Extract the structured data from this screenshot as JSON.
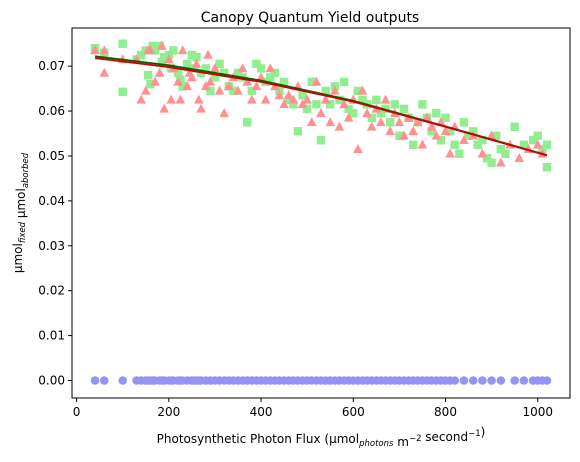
{
  "chart_data": {
    "type": "scatter",
    "title": "Canopy Quantum Yield outputs",
    "xlabel": {
      "parts": [
        {
          "text": "Photosynthetic Photon Flux (µmol",
          "style": "normal"
        },
        {
          "text": "photons",
          "style": "sub-italic"
        },
        {
          "text": " m",
          "style": "normal"
        },
        {
          "text": "−2",
          "style": "sup"
        },
        {
          "text": " second",
          "style": "normal"
        },
        {
          "text": "−1",
          "style": "sup"
        },
        {
          "text": ")",
          "style": "normal"
        }
      ]
    },
    "ylabel": {
      "parts": [
        {
          "text": "µmol",
          "style": "normal"
        },
        {
          "text": "fixed",
          "style": "sub-italic"
        },
        {
          "text": " µmol",
          "style": "normal"
        },
        {
          "text": "aborbed",
          "style": "sub-italic"
        }
      ]
    },
    "xlim": [
      -10,
      1070
    ],
    "ylim": [
      -0.0039,
      0.0785
    ],
    "x_ticks": [
      0,
      200,
      400,
      600,
      800,
      1000
    ],
    "y_ticks": [
      0.0,
      0.01,
      0.02,
      0.03,
      0.04,
      0.05,
      0.06,
      0.07
    ],
    "y_tick_labels": [
      "0.00",
      "0.01",
      "0.02",
      "0.03",
      "0.04",
      "0.05",
      "0.06",
      "0.07"
    ],
    "grid": false,
    "series": [
      {
        "marker": "square",
        "color": "#90ee90",
        "x": [
          40,
          60,
          100,
          100,
          130,
          140,
          150,
          155,
          160,
          165,
          170,
          180,
          185,
          190,
          200,
          205,
          210,
          220,
          225,
          230,
          240,
          250,
          255,
          260,
          270,
          280,
          290,
          300,
          310,
          320,
          330,
          340,
          350,
          360,
          370,
          380,
          390,
          400,
          410,
          420,
          430,
          440,
          450,
          460,
          470,
          480,
          490,
          500,
          510,
          520,
          530,
          540,
          550,
          560,
          570,
          580,
          590,
          600,
          610,
          620,
          630,
          640,
          650,
          660,
          670,
          680,
          690,
          700,
          710,
          720,
          730,
          740,
          750,
          760,
          770,
          780,
          790,
          800,
          810,
          820,
          830,
          840,
          850,
          860,
          870,
          880,
          890,
          900,
          910,
          920,
          930,
          950,
          970,
          990,
          1000,
          1010,
          1020,
          1020
        ],
        "y": [
          0.074,
          0.073,
          0.075,
          0.0643,
          0.0715,
          0.0725,
          0.0735,
          0.068,
          0.066,
          0.0745,
          0.0735,
          0.0745,
          0.071,
          0.072,
          0.0725,
          0.0695,
          0.0735,
          0.0685,
          0.067,
          0.0655,
          0.0705,
          0.0725,
          0.0695,
          0.072,
          0.0685,
          0.0695,
          0.0645,
          0.0675,
          0.0705,
          0.0685,
          0.0655,
          0.0645,
          0.0685,
          0.0675,
          0.0575,
          0.0645,
          0.0705,
          0.0695,
          0.0665,
          0.0675,
          0.0685,
          0.0645,
          0.0665,
          0.0625,
          0.0615,
          0.0555,
          0.0635,
          0.0605,
          0.0665,
          0.0615,
          0.0535,
          0.0645,
          0.0615,
          0.0655,
          0.0625,
          0.0665,
          0.0605,
          0.0595,
          0.0645,
          0.0625,
          0.0615,
          0.0585,
          0.0625,
          0.0595,
          0.0605,
          0.0575,
          0.0615,
          0.0545,
          0.0605,
          0.0585,
          0.0525,
          0.0575,
          0.0615,
          0.0585,
          0.0555,
          0.0595,
          0.0535,
          0.0585,
          0.0555,
          0.0525,
          0.0505,
          0.0575,
          0.0545,
          0.0555,
          0.0525,
          0.0535,
          0.0495,
          0.0485,
          0.0545,
          0.0515,
          0.0505,
          0.0565,
          0.0525,
          0.0535,
          0.0545,
          0.0515,
          0.0525,
          0.0475
        ]
      },
      {
        "marker": "triangle",
        "color": "#ff9191",
        "x": [
          40,
          60,
          60,
          100,
          130,
          140,
          150,
          155,
          160,
          170,
          180,
          185,
          190,
          200,
          205,
          210,
          220,
          225,
          230,
          240,
          245,
          250,
          260,
          265,
          270,
          280,
          285,
          290,
          300,
          310,
          320,
          330,
          340,
          350,
          360,
          370,
          380,
          390,
          400,
          410,
          420,
          430,
          440,
          450,
          460,
          470,
          480,
          490,
          500,
          510,
          520,
          530,
          540,
          550,
          560,
          570,
          580,
          590,
          600,
          610,
          620,
          630,
          640,
          650,
          660,
          670,
          680,
          690,
          700,
          710,
          720,
          730,
          740,
          750,
          760,
          770,
          780,
          790,
          800,
          810,
          820,
          840,
          860,
          880,
          900,
          920,
          940,
          960,
          980,
          1000,
          1010
        ],
        "y": [
          0.0735,
          0.0735,
          0.0685,
          0.0715,
          0.0715,
          0.0625,
          0.0645,
          0.0735,
          0.0735,
          0.0665,
          0.0685,
          0.0745,
          0.0605,
          0.0715,
          0.0625,
          0.0695,
          0.0665,
          0.0625,
          0.0735,
          0.0655,
          0.0685,
          0.0675,
          0.0705,
          0.0625,
          0.0605,
          0.0655,
          0.0725,
          0.0665,
          0.0695,
          0.0645,
          0.0595,
          0.0655,
          0.0675,
          0.0645,
          0.0695,
          0.0665,
          0.0625,
          0.0655,
          0.0675,
          0.0625,
          0.0695,
          0.0655,
          0.0635,
          0.0615,
          0.0635,
          0.0625,
          0.0655,
          0.0615,
          0.0625,
          0.0575,
          0.0665,
          0.0595,
          0.0625,
          0.0575,
          0.0645,
          0.0565,
          0.0615,
          0.0585,
          0.0625,
          0.0515,
          0.0645,
          0.0595,
          0.0565,
          0.0605,
          0.0575,
          0.0625,
          0.0555,
          0.0595,
          0.0575,
          0.0545,
          0.0585,
          0.0555,
          0.0575,
          0.0525,
          0.0585,
          0.0565,
          0.0545,
          0.0575,
          0.0555,
          0.0505,
          0.0565,
          0.0535,
          0.0545,
          0.0505,
          0.0545,
          0.0485,
          0.0525,
          0.0495,
          0.0515,
          0.0525,
          0.0505
        ]
      },
      {
        "marker": "circle",
        "color": "#9494f5",
        "x": [
          40,
          60,
          100,
          130,
          140,
          150,
          155,
          160,
          165,
          170,
          180,
          185,
          190,
          200,
          205,
          210,
          220,
          225,
          230,
          240,
          250,
          255,
          260,
          265,
          270,
          280,
          290,
          300,
          310,
          320,
          330,
          340,
          350,
          360,
          370,
          380,
          390,
          400,
          410,
          420,
          430,
          440,
          450,
          460,
          470,
          480,
          490,
          500,
          510,
          520,
          530,
          540,
          550,
          560,
          570,
          580,
          590,
          600,
          610,
          620,
          630,
          640,
          650,
          660,
          670,
          680,
          690,
          700,
          710,
          720,
          730,
          740,
          750,
          760,
          770,
          780,
          790,
          800,
          810,
          820,
          840,
          860,
          880,
          900,
          920,
          950,
          970,
          990,
          1000,
          1010,
          1020
        ],
        "y": [
          0,
          0,
          0,
          0,
          0,
          0,
          0,
          0,
          0,
          0,
          0,
          0,
          0,
          0,
          0,
          0,
          0,
          0,
          0,
          0,
          0,
          0,
          0,
          0,
          0,
          0,
          0,
          0,
          0,
          0,
          0,
          0,
          0,
          0,
          0,
          0,
          0,
          0,
          0,
          0,
          0,
          0,
          0,
          0,
          0,
          0,
          0,
          0,
          0,
          0,
          0,
          0,
          0,
          0,
          0,
          0,
          0,
          0,
          0,
          0,
          0,
          0,
          0,
          0,
          0,
          0,
          0,
          0,
          0,
          0,
          0,
          0,
          0,
          0,
          0,
          0,
          0,
          0,
          0,
          0,
          0,
          0,
          0,
          0,
          0,
          0,
          0,
          0,
          0,
          0,
          0
        ]
      }
    ],
    "lines": [
      {
        "color": "#006400",
        "x": [
          40,
          200,
          400,
          600,
          800,
          1020
        ],
        "y": [
          0.0722,
          0.0702,
          0.0668,
          0.0623,
          0.0566,
          0.0502
        ]
      },
      {
        "color": "#cc0000",
        "x": [
          40,
          200,
          400,
          600,
          800,
          1020
        ],
        "y": [
          0.0718,
          0.0698,
          0.0665,
          0.0621,
          0.0565,
          0.0501
        ]
      }
    ]
  }
}
